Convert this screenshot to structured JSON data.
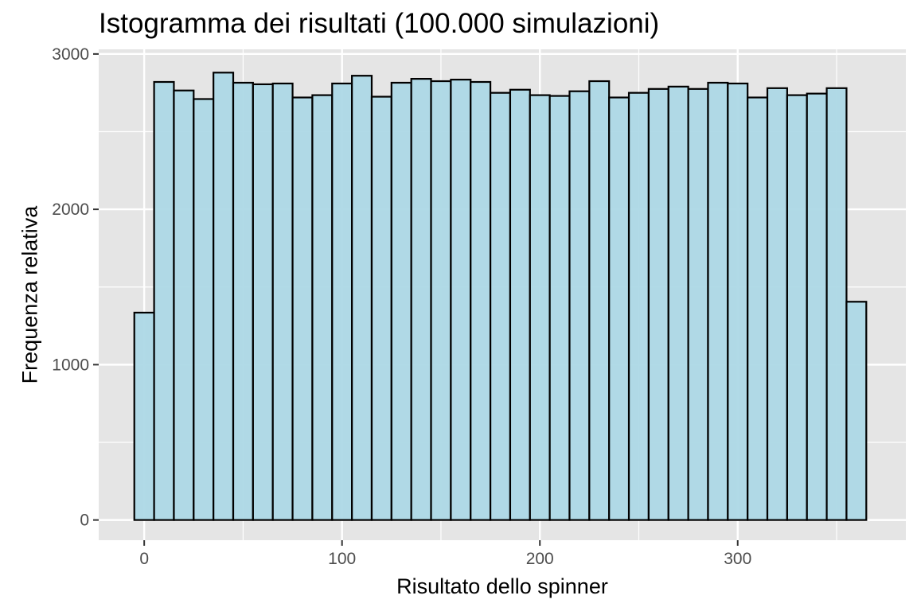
{
  "chart_data": {
    "type": "bar",
    "subtype": "histogram",
    "title": "Istogramma dei risultati (100.000 simulazioni)",
    "xlabel": "Risultato dello spinner",
    "ylabel": "Frequenza relativa",
    "xlim": [
      -23,
      385
    ],
    "ylim": [
      -130,
      3030
    ],
    "x_ticks": [
      0,
      100,
      200,
      300
    ],
    "y_ticks": [
      0,
      1000,
      2000,
      3000
    ],
    "bin_width": 10,
    "bin_edges_start": -5,
    "values": [
      1335,
      2820,
      2765,
      2710,
      2880,
      2815,
      2805,
      2810,
      2720,
      2735,
      2810,
      2860,
      2725,
      2815,
      2840,
      2825,
      2835,
      2820,
      2750,
      2770,
      2735,
      2730,
      2760,
      2825,
      2720,
      2750,
      2775,
      2790,
      2775,
      2815,
      2810,
      2720,
      2780,
      2735,
      2745,
      2780,
      1405
    ],
    "bar_fill": "#add8e6",
    "bar_stroke": "#000000",
    "panel_background": "#e5e5e5",
    "grid": true,
    "grid_color": "#ffffff"
  }
}
